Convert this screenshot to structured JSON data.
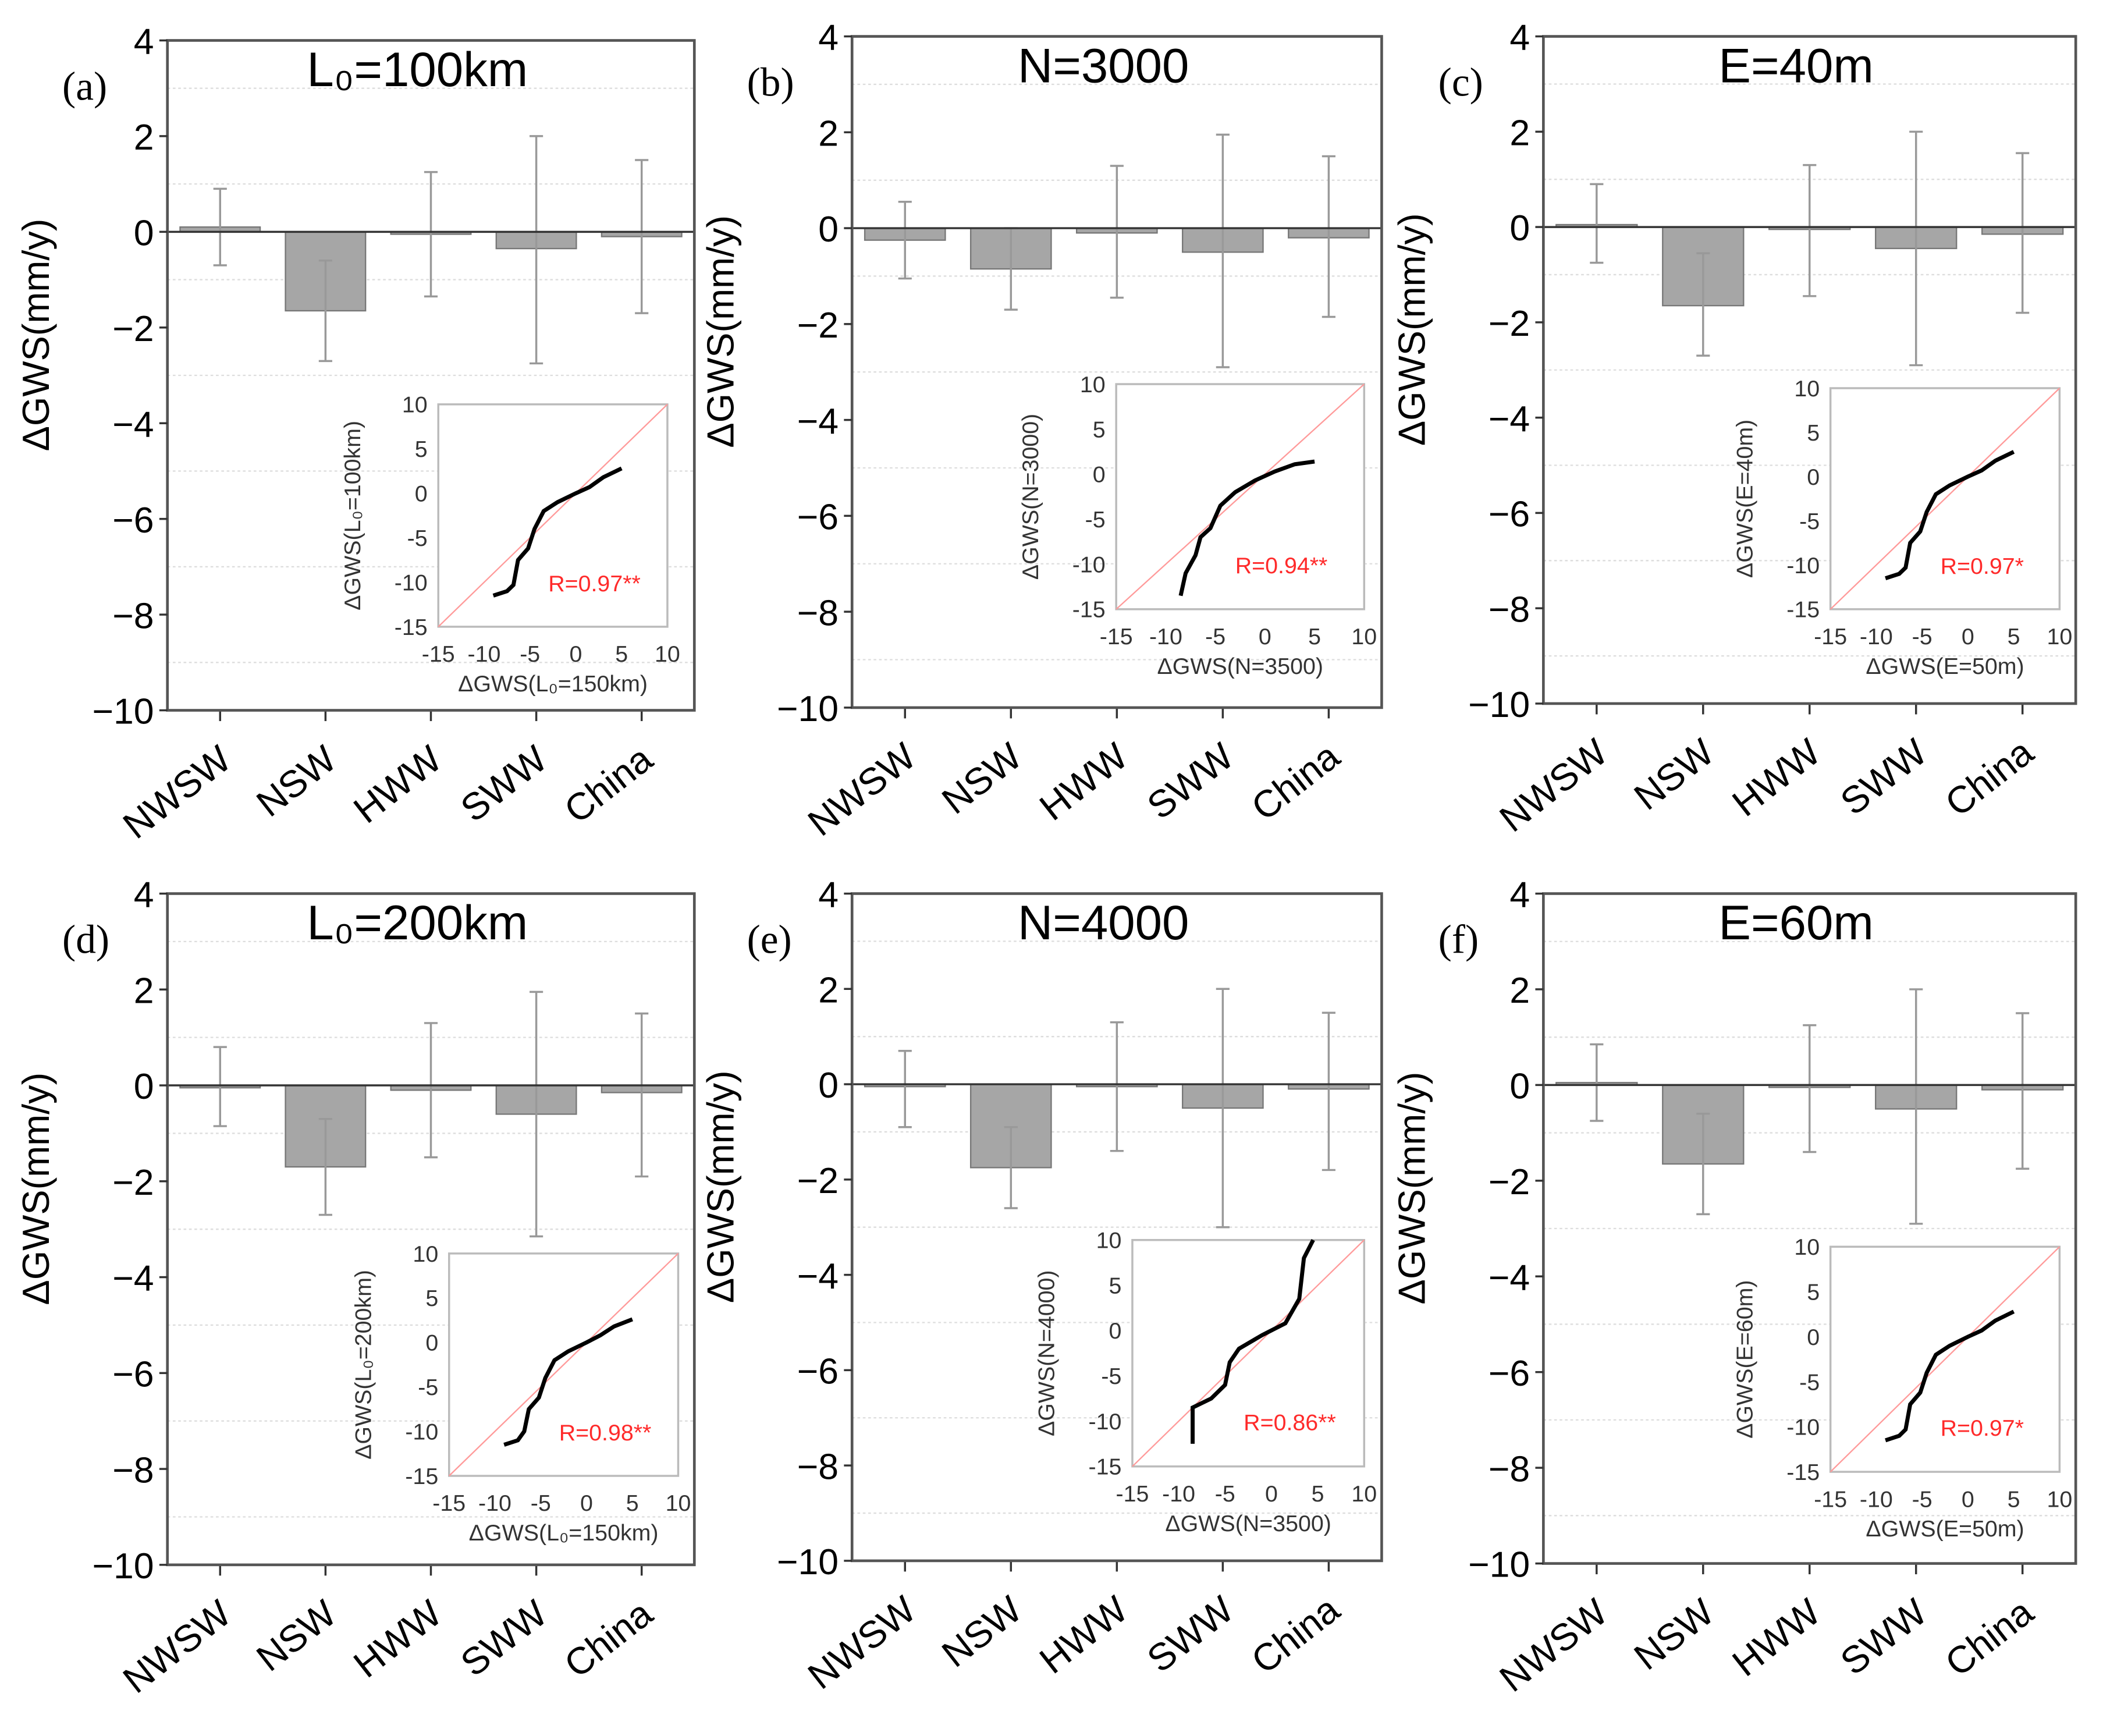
{
  "chart_data": [
    {
      "panel": "(a)",
      "title": "L₀=100km",
      "type": "bar",
      "categories": [
        "NWSW",
        "NSW",
        "HWW",
        "SWW",
        "China"
      ],
      "values": [
        0.1,
        -1.65,
        -0.05,
        -0.35,
        -0.1
      ],
      "error_low": [
        -0.7,
        -2.7,
        -1.35,
        -2.75,
        -1.7
      ],
      "error_high": [
        0.9,
        -0.6,
        1.25,
        2.0,
        1.5
      ],
      "inset": {
        "type": "line",
        "xlabel": "ΔGWS(L₀=150km)",
        "ylabel": "ΔGWS(L₀=100km)",
        "annotation": "R=0.97**",
        "points": [
          [
            -9,
            -11.5
          ],
          [
            -7.5,
            -11
          ],
          [
            -6.8,
            -10.3
          ],
          [
            -6.3,
            -7.5
          ],
          [
            -5.2,
            -6.2
          ],
          [
            -4.5,
            -4
          ],
          [
            -3.5,
            -2
          ],
          [
            -2,
            -1
          ],
          [
            0,
            0
          ],
          [
            1.5,
            0.7
          ],
          [
            3,
            1.8
          ],
          [
            5,
            2.8
          ]
        ]
      }
    },
    {
      "panel": "(b)",
      "title": "N=3000",
      "type": "bar",
      "categories": [
        "NWSW",
        "NSW",
        "HWW",
        "SWW",
        "China"
      ],
      "values": [
        -0.25,
        -0.85,
        -0.1,
        -0.5,
        -0.2
      ],
      "error_low": [
        -1.05,
        -1.7,
        -1.45,
        -2.9,
        -1.85
      ],
      "error_high": [
        0.55,
        0,
        1.3,
        1.95,
        1.5
      ],
      "inset": {
        "type": "line",
        "xlabel": "ΔGWS(N=3500)",
        "ylabel": "ΔGWS(N=3000)",
        "annotation": "R=0.94**",
        "points": [
          [
            -8.5,
            -13.5
          ],
          [
            -8,
            -11
          ],
          [
            -7,
            -9
          ],
          [
            -6.5,
            -7
          ],
          [
            -5.5,
            -6
          ],
          [
            -4.5,
            -3.5
          ],
          [
            -3,
            -2
          ],
          [
            -1,
            -0.7
          ],
          [
            1,
            0.3
          ],
          [
            3,
            1.1
          ],
          [
            5,
            1.4
          ]
        ]
      }
    },
    {
      "panel": "(c)",
      "title": "E=40m",
      "type": "bar",
      "categories": [
        "NWSW",
        "NSW",
        "HWW",
        "SWW",
        "China"
      ],
      "values": [
        0.05,
        -1.65,
        -0.05,
        -0.45,
        -0.15
      ],
      "error_low": [
        -0.75,
        -2.7,
        -1.45,
        -2.9,
        -1.8
      ],
      "error_high": [
        0.9,
        -0.55,
        1.3,
        2.0,
        1.55
      ],
      "inset": {
        "type": "line",
        "xlabel": "ΔGWS(E=50m)",
        "ylabel": "ΔGWS(E=40m)",
        "annotation": "R=0.97*",
        "points": [
          [
            -9,
            -11.5
          ],
          [
            -7.5,
            -11
          ],
          [
            -6.8,
            -10.3
          ],
          [
            -6.3,
            -7.5
          ],
          [
            -5.2,
            -6.2
          ],
          [
            -4.5,
            -4
          ],
          [
            -3.5,
            -2
          ],
          [
            -2,
            -1
          ],
          [
            0,
            0
          ],
          [
            1.5,
            0.7
          ],
          [
            3,
            1.8
          ],
          [
            5,
            2.8
          ]
        ]
      }
    },
    {
      "panel": "(d)",
      "title": "L₀=200km",
      "type": "bar",
      "categories": [
        "NWSW",
        "NSW",
        "HWW",
        "SWW",
        "China"
      ],
      "values": [
        -0.05,
        -1.7,
        -0.1,
        -0.6,
        -0.15
      ],
      "error_low": [
        -0.85,
        -2.7,
        -1.5,
        -3.15,
        -1.9
      ],
      "error_high": [
        0.8,
        -0.7,
        1.3,
        1.95,
        1.5
      ],
      "inset": {
        "type": "line",
        "xlabel": "ΔGWS(L₀=150km)",
        "ylabel": "ΔGWS(L₀=200km)",
        "annotation": "R=0.98**",
        "points": [
          [
            -9,
            -11.5
          ],
          [
            -7.5,
            -11
          ],
          [
            -6.8,
            -10
          ],
          [
            -6.3,
            -7.5
          ],
          [
            -5.2,
            -6.2
          ],
          [
            -4.5,
            -4
          ],
          [
            -3.5,
            -2
          ],
          [
            -2,
            -1
          ],
          [
            0,
            0
          ],
          [
            1.5,
            0.8
          ],
          [
            3,
            1.8
          ],
          [
            5,
            2.6
          ]
        ]
      }
    },
    {
      "panel": "(e)",
      "title": "N=4000",
      "type": "bar",
      "categories": [
        "NWSW",
        "NSW",
        "HWW",
        "SWW",
        "China"
      ],
      "values": [
        -0.05,
        -1.75,
        -0.05,
        -0.5,
        -0.1
      ],
      "error_low": [
        -0.9,
        -2.6,
        -1.4,
        -3.0,
        -1.8
      ],
      "error_high": [
        0.7,
        -0.9,
        1.3,
        2.0,
        1.5
      ],
      "inset": {
        "type": "line",
        "xlabel": "ΔGWS(N=3500)",
        "ylabel": "ΔGWS(N=4000)",
        "annotation": "R=0.86**",
        "points": [
          [
            -8.5,
            -12.5
          ],
          [
            -8.5,
            -8.5
          ],
          [
            -6.5,
            -7.5
          ],
          [
            -5,
            -6
          ],
          [
            -4.5,
            -3.5
          ],
          [
            -3.5,
            -2
          ],
          [
            -1,
            -0.5
          ],
          [
            1.5,
            0.8
          ],
          [
            3,
            3.5
          ],
          [
            3.5,
            8
          ],
          [
            4.5,
            10
          ]
        ]
      }
    },
    {
      "panel": "(f)",
      "title": "E=60m",
      "type": "bar",
      "categories": [
        "NWSW",
        "NSW",
        "HWW",
        "SWW",
        "China"
      ],
      "values": [
        0.05,
        -1.65,
        -0.05,
        -0.5,
        -0.1
      ],
      "error_low": [
        -0.75,
        -2.7,
        -1.4,
        -2.9,
        -1.75
      ],
      "error_high": [
        0.85,
        -0.6,
        1.25,
        2.0,
        1.5
      ],
      "inset": {
        "type": "line",
        "xlabel": "ΔGWS(E=50m)",
        "ylabel": "ΔGWS(E=60m)",
        "annotation": "R=0.97*",
        "points": [
          [
            -9,
            -11.5
          ],
          [
            -7.5,
            -11
          ],
          [
            -6.8,
            -10.3
          ],
          [
            -6.3,
            -7.5
          ],
          [
            -5.2,
            -6.2
          ],
          [
            -4.5,
            -4
          ],
          [
            -3.5,
            -2
          ],
          [
            -2,
            -1
          ],
          [
            0,
            0
          ],
          [
            1.5,
            0.7
          ],
          [
            3,
            1.8
          ],
          [
            5,
            2.8
          ]
        ]
      }
    }
  ],
  "ylabel": "ΔGWS(mm/y)",
  "ylim": [
    -10,
    4
  ],
  "yticks": [
    "−10",
    "−8",
    "−6",
    "−4",
    "−2",
    "0",
    "2",
    "4"
  ],
  "inset_lim": [
    -15,
    10
  ],
  "inset_ticks": [
    "-15",
    "-10",
    "-5",
    "0",
    "5",
    "10"
  ],
  "colors": {
    "bar": "#a6a6a6",
    "error": "#999999",
    "diag": "#ff9a9a",
    "curve": "#000000",
    "rtext": "#ff2a2a"
  }
}
